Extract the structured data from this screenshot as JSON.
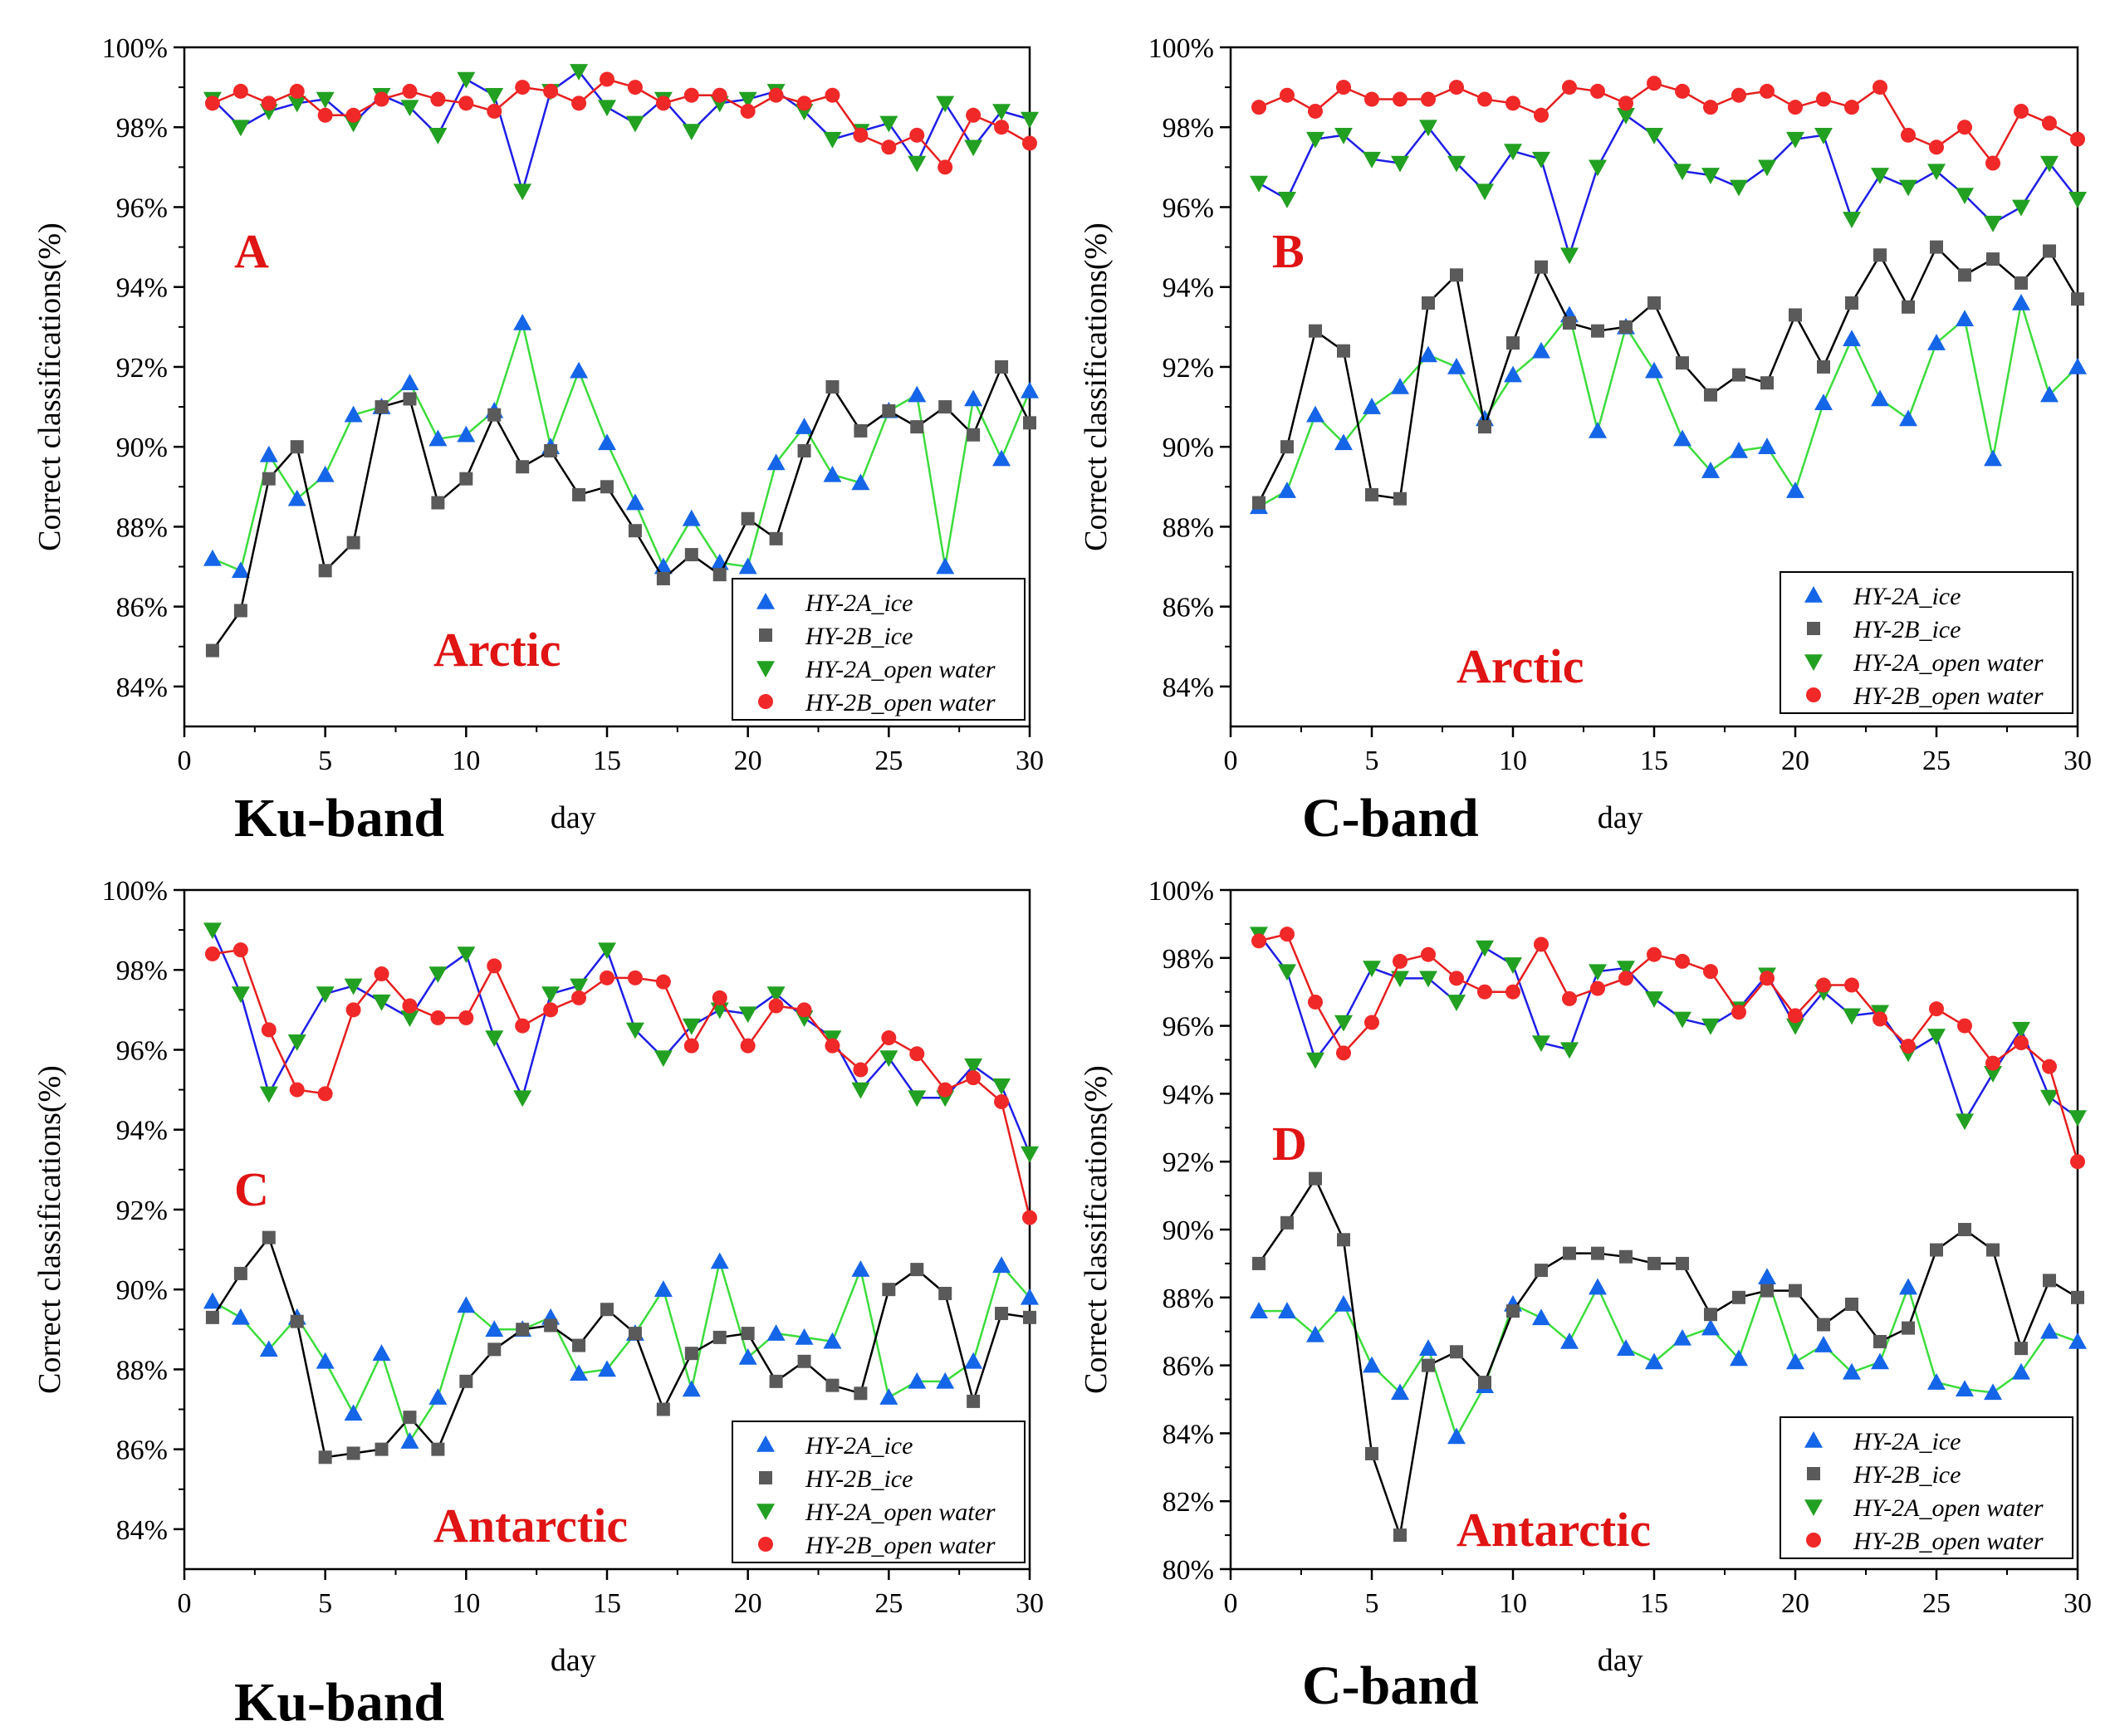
{
  "colors": {
    "hy2a_ice_marker": "#1565E8",
    "hy2b_ice_marker": "#5A5A5A",
    "hy2a_water_marker": "#22A022",
    "hy2b_water_marker": "#F02828",
    "ice_a_line": "#3CDC3C",
    "ice_b_line": "#000000",
    "water_a_line": "#1E1EE6",
    "water_b_line": "#E61E1E",
    "panel_letter": "#E01414",
    "region_label": "#E01414"
  },
  "chart_data": [
    {
      "id": "A",
      "type": "line",
      "title": "",
      "panel_letter": "A",
      "region": "Arctic",
      "band": "Ku-band",
      "xlabel": "day",
      "ylabel": "Correct classifications(%)",
      "xlim": [
        0,
        30
      ],
      "ylim": [
        83,
        100
      ],
      "xticks": [
        0,
        5,
        10,
        15,
        20,
        25,
        30
      ],
      "yticks": [
        84,
        86,
        88,
        90,
        92,
        94,
        96,
        98,
        100
      ],
      "ytick_labels": [
        "84%",
        "86%",
        "88%",
        "90%",
        "92%",
        "94%",
        "96%",
        "98%",
        "100%"
      ],
      "legend": [
        "HY-2A_ice",
        "HY-2B_ice",
        "HY-2A_open water",
        "HY-2B_open water"
      ],
      "legend_position": "bottom-right",
      "x": [
        1,
        2,
        3,
        4,
        5,
        6,
        7,
        8,
        9,
        10,
        11,
        12,
        13,
        14,
        15,
        16,
        17,
        18,
        19,
        20,
        21,
        22,
        23,
        24,
        25,
        26,
        27,
        28,
        29,
        30
      ],
      "series": [
        {
          "name": "HY-2A_ice",
          "values": [
            87.2,
            86.9,
            89.8,
            88.7,
            89.3,
            90.8,
            91.0,
            91.6,
            90.2,
            90.3,
            90.9,
            93.1,
            90.0,
            91.9,
            90.1,
            88.6,
            87.0,
            88.2,
            87.1,
            87.0,
            89.6,
            90.5,
            89.3,
            89.1,
            90.9,
            91.3,
            87.0,
            91.2,
            89.7,
            91.4
          ]
        },
        {
          "name": "HY-2B_ice",
          "values": [
            84.9,
            85.9,
            89.2,
            90.0,
            86.9,
            87.6,
            91.0,
            91.2,
            88.6,
            89.2,
            90.8,
            89.5,
            89.9,
            88.8,
            89.0,
            87.9,
            86.7,
            87.3,
            86.8,
            88.2,
            87.7,
            89.9,
            91.5,
            90.4,
            90.9,
            90.5,
            91.0,
            90.3,
            92.0,
            90.6
          ]
        },
        {
          "name": "HY-2A_open water",
          "values": [
            98.7,
            98.0,
            98.4,
            98.6,
            98.7,
            98.1,
            98.8,
            98.5,
            97.8,
            99.2,
            98.8,
            96.4,
            98.9,
            99.4,
            98.5,
            98.1,
            98.7,
            97.9,
            98.6,
            98.7,
            98.9,
            98.4,
            97.7,
            97.9,
            98.1,
            97.1,
            98.6,
            97.5,
            98.4,
            98.2
          ]
        },
        {
          "name": "HY-2B_open water",
          "values": [
            98.6,
            98.9,
            98.6,
            98.9,
            98.3,
            98.3,
            98.7,
            98.9,
            98.7,
            98.6,
            98.4,
            99.0,
            98.9,
            98.6,
            99.2,
            99.0,
            98.6,
            98.8,
            98.8,
            98.4,
            98.8,
            98.6,
            98.8,
            97.8,
            97.5,
            97.8,
            97.0,
            98.3,
            98.0,
            97.6
          ]
        }
      ]
    },
    {
      "id": "B",
      "type": "line",
      "title": "",
      "panel_letter": "B",
      "region": "Arctic",
      "band": "C-band",
      "xlabel": "day",
      "ylabel": "Correct classifications(%)",
      "xlim": [
        0,
        30
      ],
      "ylim": [
        83,
        100
      ],
      "xticks": [
        0,
        5,
        10,
        15,
        20,
        25,
        30
      ],
      "yticks": [
        84,
        86,
        88,
        90,
        92,
        94,
        96,
        98,
        100
      ],
      "ytick_labels": [
        "84%",
        "86%",
        "88%",
        "90%",
        "92%",
        "94%",
        "96%",
        "98%",
        "100%"
      ],
      "legend": [
        "HY-2A_ice",
        "HY-2B_ice",
        "HY-2A_open water",
        "HY-2B_open water"
      ],
      "legend_position": "bottom-right",
      "x": [
        1,
        2,
        3,
        4,
        5,
        6,
        7,
        8,
        9,
        10,
        11,
        12,
        13,
        14,
        15,
        16,
        17,
        18,
        19,
        20,
        21,
        22,
        23,
        24,
        25,
        26,
        27,
        28,
        29,
        30
      ],
      "series": [
        {
          "name": "HY-2A_ice",
          "values": [
            88.5,
            88.9,
            90.8,
            90.1,
            91.0,
            91.5,
            92.3,
            92.0,
            90.7,
            91.8,
            92.4,
            93.3,
            90.4,
            93.0,
            91.9,
            90.2,
            89.4,
            89.9,
            90.0,
            88.9,
            91.1,
            92.7,
            91.2,
            90.7,
            92.6,
            93.2,
            89.7,
            93.6,
            91.3,
            92.0
          ]
        },
        {
          "name": "HY-2B_ice",
          "values": [
            88.6,
            90.0,
            92.9,
            92.4,
            88.8,
            88.7,
            93.6,
            94.3,
            90.5,
            92.6,
            94.5,
            93.1,
            92.9,
            93.0,
            93.6,
            92.1,
            91.3,
            91.8,
            91.6,
            93.3,
            92.0,
            93.6,
            94.8,
            93.5,
            95.0,
            94.3,
            94.7,
            94.1,
            94.9,
            93.7
          ]
        },
        {
          "name": "HY-2A_open water",
          "values": [
            96.6,
            96.2,
            97.7,
            97.8,
            97.2,
            97.1,
            98.0,
            97.1,
            96.4,
            97.4,
            97.2,
            94.8,
            97.0,
            98.3,
            97.8,
            96.9,
            96.8,
            96.5,
            97.0,
            97.7,
            97.8,
            95.7,
            96.8,
            96.5,
            96.9,
            96.3,
            95.6,
            96.0,
            97.1,
            96.2
          ]
        },
        {
          "name": "HY-2B_open water",
          "values": [
            98.5,
            98.8,
            98.4,
            99.0,
            98.7,
            98.7,
            98.7,
            99.0,
            98.7,
            98.6,
            98.3,
            99.0,
            98.9,
            98.6,
            99.1,
            98.9,
            98.5,
            98.8,
            98.9,
            98.5,
            98.7,
            98.5,
            99.0,
            97.8,
            97.5,
            98.0,
            97.1,
            98.4,
            98.1,
            97.7
          ]
        }
      ]
    },
    {
      "id": "C",
      "type": "line",
      "title": "",
      "panel_letter": "C",
      "region": "Antarctic",
      "band": "Ku-band",
      "xlabel": "day",
      "ylabel": "Correct classifications(%)",
      "xlim": [
        0,
        30
      ],
      "ylim": [
        83,
        100
      ],
      "xticks": [
        0,
        5,
        10,
        15,
        20,
        25,
        30
      ],
      "yticks": [
        84,
        86,
        88,
        90,
        92,
        94,
        96,
        98,
        100
      ],
      "ytick_labels": [
        "84%",
        "86%",
        "88%",
        "90%",
        "92%",
        "94%",
        "96%",
        "98%",
        "100%"
      ],
      "legend": [
        "HY-2A_ice",
        "HY-2B_ice",
        "HY-2A_open water",
        "HY-2B_open water"
      ],
      "legend_position": "bottom-right",
      "x": [
        1,
        2,
        3,
        4,
        5,
        6,
        7,
        8,
        9,
        10,
        11,
        12,
        13,
        14,
        15,
        16,
        17,
        18,
        19,
        20,
        21,
        22,
        23,
        24,
        25,
        26,
        27,
        28,
        29,
        30
      ],
      "series": [
        {
          "name": "HY-2A_ice",
          "values": [
            89.7,
            89.3,
            88.5,
            89.3,
            88.2,
            86.9,
            88.4,
            86.2,
            87.3,
            89.6,
            89.0,
            89.0,
            89.3,
            87.9,
            88.0,
            88.9,
            90.0,
            87.5,
            90.7,
            88.3,
            88.9,
            88.8,
            88.7,
            90.5,
            87.3,
            87.7,
            87.7,
            88.2,
            90.6,
            89.8
          ]
        },
        {
          "name": "HY-2B_ice",
          "values": [
            89.3,
            90.4,
            91.3,
            89.2,
            85.8,
            85.9,
            86.0,
            86.8,
            86.0,
            87.7,
            88.5,
            89.0,
            89.1,
            88.6,
            89.5,
            88.9,
            87.0,
            88.4,
            88.8,
            88.9,
            87.7,
            88.2,
            87.6,
            87.4,
            90.0,
            90.5,
            89.9,
            87.2,
            89.4,
            89.3
          ]
        },
        {
          "name": "HY-2A_open water",
          "values": [
            99.0,
            97.4,
            94.9,
            96.2,
            97.4,
            97.6,
            97.2,
            96.8,
            97.9,
            98.4,
            96.3,
            94.8,
            97.4,
            97.6,
            98.5,
            96.5,
            95.8,
            96.6,
            97.0,
            96.9,
            97.4,
            96.8,
            96.3,
            95.0,
            95.8,
            94.8,
            94.8,
            95.6,
            95.1,
            93.4
          ]
        },
        {
          "name": "HY-2B_open water",
          "values": [
            98.4,
            98.5,
            96.5,
            95.0,
            94.9,
            97.0,
            97.9,
            97.1,
            96.8,
            96.8,
            98.1,
            96.6,
            97.0,
            97.3,
            97.8,
            97.8,
            97.7,
            96.1,
            97.3,
            96.1,
            97.1,
            97.0,
            96.1,
            95.5,
            96.3,
            95.9,
            95.0,
            95.3,
            94.7,
            91.8
          ]
        }
      ]
    },
    {
      "id": "D",
      "type": "line",
      "title": "",
      "panel_letter": "D",
      "region": "Antarctic",
      "band": "C-band",
      "xlabel": "day",
      "ylabel": "Correct classifications(%)",
      "xlim": [
        0,
        30
      ],
      "ylim": [
        80,
        100
      ],
      "xticks": [
        0,
        5,
        10,
        15,
        20,
        25,
        30
      ],
      "yticks": [
        80,
        82,
        84,
        86,
        88,
        90,
        92,
        94,
        96,
        98,
        100
      ],
      "ytick_labels": [
        "80%",
        "82%",
        "84%",
        "86%",
        "88%",
        "90%",
        "92%",
        "94%",
        "96%",
        "98%",
        "100%"
      ],
      "legend": [
        "HY-2A_ice",
        "HY-2B_ice",
        "HY-2A_open water",
        "HY-2B_open water"
      ],
      "legend_position": "bottom-right",
      "x": [
        1,
        2,
        3,
        4,
        5,
        6,
        7,
        8,
        9,
        10,
        11,
        12,
        13,
        14,
        15,
        16,
        17,
        18,
        19,
        20,
        21,
        22,
        23,
        24,
        25,
        26,
        27,
        28,
        29,
        30
      ],
      "series": [
        {
          "name": "HY-2A_ice",
          "values": [
            87.6,
            87.6,
            86.9,
            87.8,
            86.0,
            85.2,
            86.5,
            83.9,
            85.4,
            87.8,
            87.4,
            86.7,
            88.3,
            86.5,
            86.1,
            86.8,
            87.1,
            86.2,
            88.6,
            86.1,
            86.6,
            85.8,
            86.1,
            88.3,
            85.5,
            85.3,
            85.2,
            85.8,
            87.0,
            86.7
          ]
        },
        {
          "name": "HY-2B_ice",
          "values": [
            89.0,
            90.2,
            91.5,
            89.7,
            83.4,
            81.0,
            86.0,
            86.4,
            85.5,
            87.6,
            88.8,
            89.3,
            89.3,
            89.2,
            89.0,
            89.0,
            87.5,
            88.0,
            88.2,
            88.2,
            87.2,
            87.8,
            86.7,
            87.1,
            89.4,
            90.0,
            89.4,
            86.5,
            88.5,
            88.0
          ]
        },
        {
          "name": "HY-2A_open water",
          "values": [
            98.7,
            97.6,
            95.0,
            96.1,
            97.7,
            97.4,
            97.4,
            96.7,
            98.3,
            97.8,
            95.5,
            95.3,
            97.6,
            97.7,
            96.8,
            96.2,
            96.0,
            96.5,
            97.5,
            96.0,
            97.0,
            96.3,
            96.4,
            95.2,
            95.7,
            93.2,
            94.6,
            95.9,
            93.9,
            93.3
          ]
        },
        {
          "name": "HY-2B_open water",
          "values": [
            98.5,
            98.7,
            96.7,
            95.2,
            96.1,
            97.9,
            98.1,
            97.4,
            97.0,
            97.0,
            98.4,
            96.8,
            97.1,
            97.4,
            98.1,
            97.9,
            97.6,
            96.4,
            97.4,
            96.3,
            97.2,
            97.2,
            96.2,
            95.4,
            96.5,
            96.0,
            94.9,
            95.5,
            94.8,
            92.0
          ]
        }
      ]
    }
  ]
}
